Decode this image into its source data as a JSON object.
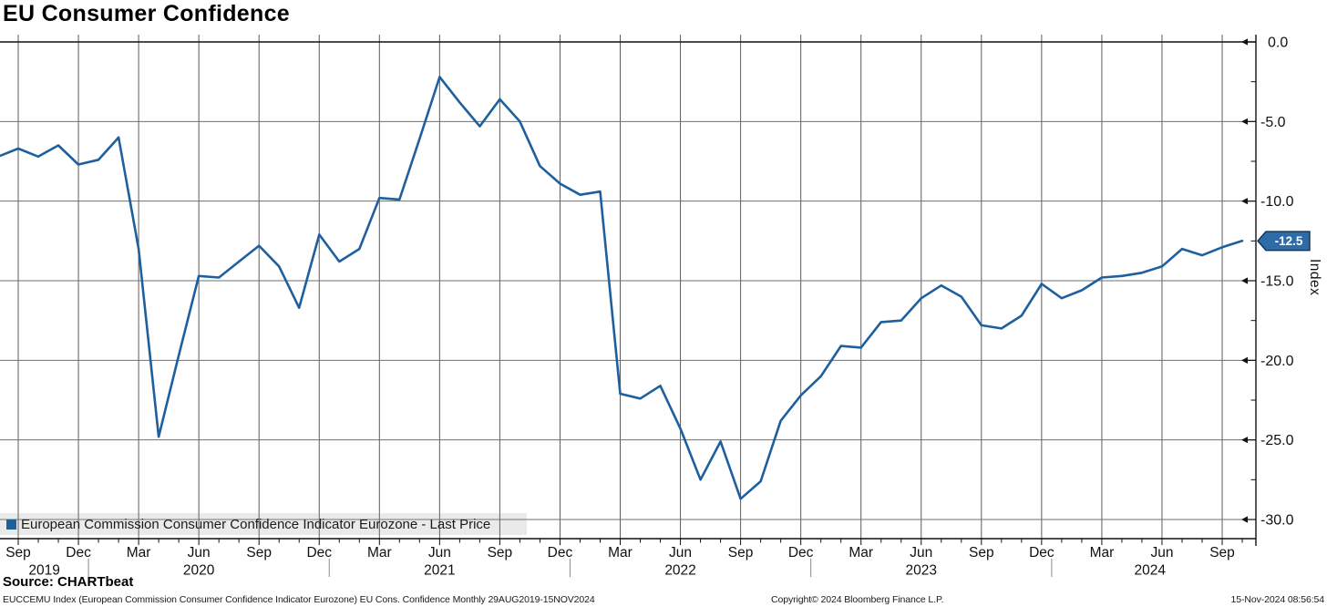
{
  "header": {
    "title": "EU Consumer Confidence"
  },
  "legend": {
    "label": "European Commission Consumer Confidence Indicator Eurozone - Last Price"
  },
  "y_axis": {
    "title": "Index",
    "tick_labels": [
      "0.0",
      "-5.0",
      "-10.0",
      "-15.0",
      "-20.0",
      "-25.0",
      "-30.0"
    ],
    "tick_values": [
      0,
      -5,
      -10,
      -15,
      -20,
      -25,
      -30
    ],
    "minor_tick_values": [
      -2.5,
      -7.5,
      -12.5,
      -17.5,
      -22.5,
      -27.5
    ],
    "last_price": -12.5,
    "last_price_label": "-12.5"
  },
  "x_axis": {
    "quarter_tick_labels": [
      "Sep",
      "Dec",
      "Mar",
      "Jun",
      "Sep",
      "Dec",
      "Mar",
      "Jun",
      "Sep",
      "Dec",
      "Mar",
      "Jun",
      "Sep",
      "Dec",
      "Mar",
      "Jun",
      "Sep",
      "Dec",
      "Mar",
      "Jun",
      "Sep"
    ],
    "quarter_tick_month_indices": [
      1,
      4,
      7,
      10,
      13,
      16,
      19,
      22,
      25,
      28,
      31,
      34,
      37,
      40,
      43,
      46,
      49,
      52,
      55,
      58,
      61
    ],
    "year_labels": [
      {
        "text": "2019",
        "month_index": 2.3
      },
      {
        "text": "2020",
        "month_index": 10
      },
      {
        "text": "2021",
        "month_index": 22
      },
      {
        "text": "2022",
        "month_index": 34
      },
      {
        "text": "2023",
        "month_index": 46
      },
      {
        "text": "2024",
        "month_index": 57.4
      }
    ],
    "year_separator_month_indices": [
      4,
      16,
      28,
      40,
      52
    ]
  },
  "chart_data": {
    "type": "line",
    "title": "EU Consumer Confidence",
    "ylabel": "Index",
    "ylim": [
      -31.2,
      0
    ],
    "grid": true,
    "legend_position": "bottom-left",
    "x": [
      "Aug 2019",
      "Sep 2019",
      "Oct 2019",
      "Nov 2019",
      "Dec 2019",
      "Jan 2020",
      "Feb 2020",
      "Mar 2020",
      "Apr 2020",
      "May 2020",
      "Jun 2020",
      "Jul 2020",
      "Aug 2020",
      "Sep 2020",
      "Oct 2020",
      "Nov 2020",
      "Dec 2020",
      "Jan 2021",
      "Feb 2021",
      "Mar 2021",
      "Apr 2021",
      "May 2021",
      "Jun 2021",
      "Jul 2021",
      "Aug 2021",
      "Sep 2021",
      "Oct 2021",
      "Nov 2021",
      "Dec 2021",
      "Jan 2022",
      "Feb 2022",
      "Mar 2022",
      "Apr 2022",
      "May 2022",
      "Jun 2022",
      "Jul 2022",
      "Aug 2022",
      "Sep 2022",
      "Oct 2022",
      "Nov 2022",
      "Dec 2022",
      "Jan 2023",
      "Feb 2023",
      "Mar 2023",
      "Apr 2023",
      "May 2023",
      "Jun 2023",
      "Jul 2023",
      "Aug 2023",
      "Sep 2023",
      "Oct 2023",
      "Nov 2023",
      "Dec 2023",
      "Jan 2024",
      "Feb 2024",
      "Mar 2024",
      "Apr 2024",
      "May 2024",
      "Jun 2024",
      "Jul 2024",
      "Aug 2024",
      "Sep 2024",
      "Oct 2024"
    ],
    "series": [
      {
        "name": "European Commission Consumer Confidence Indicator Eurozone - Last Price",
        "color": "#1e5f9e",
        "values": [
          -7.2,
          -6.7,
          -7.2,
          -6.5,
          -7.7,
          -7.4,
          -6.0,
          -13.0,
          -24.8,
          -19.7,
          -14.7,
          -14.8,
          -13.8,
          -12.8,
          -14.1,
          -16.7,
          -12.1,
          -13.8,
          -13.0,
          -9.8,
          -9.9,
          -6.1,
          -2.2,
          -3.8,
          -5.3,
          -3.6,
          -5.0,
          -7.8,
          -8.9,
          -9.6,
          -9.4,
          -22.1,
          -22.4,
          -21.6,
          -24.3,
          -27.5,
          -25.1,
          -28.7,
          -27.6,
          -23.8,
          -22.2,
          -21.0,
          -19.1,
          -19.2,
          -17.6,
          -17.5,
          -16.1,
          -15.3,
          -16.0,
          -17.8,
          -18.0,
          -17.2,
          -15.2,
          -16.1,
          -15.6,
          -14.8,
          -14.7,
          -14.5,
          -14.1,
          -13.0,
          -13.4,
          -12.9,
          -12.5
        ]
      }
    ]
  },
  "colors": {
    "line": "#1e5f9e",
    "flag_fill": "#2e6ca7",
    "flag_border": "#0e3057",
    "grid_vertical": "#5c5c5c",
    "grid_horizontal": "#6f6f6f",
    "axis": "#111111",
    "text": "#111111",
    "legend_swatch": "#1e5f9e"
  },
  "footer": {
    "source": "Source: CHARTbeat",
    "description": "EUCCEMU Index (European Commission Consumer Confidence Indicator Eurozone) EU Cons. Confidence  Monthly 29AUG2019-15NOV2024",
    "copyright": "Copyright© 2024 Bloomberg Finance L.P.",
    "datetime": "15-Nov-2024 08:56:54"
  }
}
